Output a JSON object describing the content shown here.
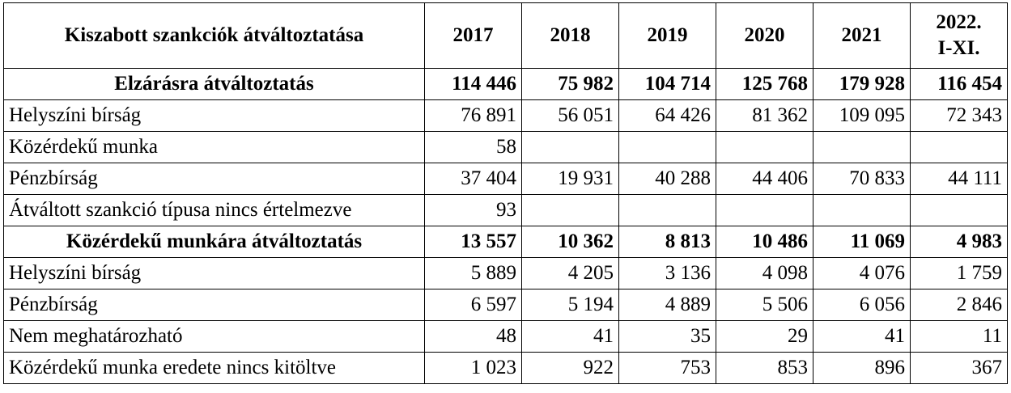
{
  "header": {
    "title": "Kiszabott szankciók átváltoztatása",
    "years": [
      "2017",
      "2018",
      "2019",
      "2020",
      "2021",
      "2022. I-XI."
    ]
  },
  "rows": [
    {
      "label": "Elzárásra átváltoztatás",
      "bold": true,
      "values": [
        "114 446",
        "75 982",
        "104 714",
        "125 768",
        "179 928",
        "116 454"
      ]
    },
    {
      "label": "Helyszíni bírság",
      "bold": false,
      "values": [
        "76 891",
        "56 051",
        "64 426",
        "81 362",
        "109 095",
        "72 343"
      ]
    },
    {
      "label": "Közérdekű munka",
      "bold": false,
      "values": [
        "58",
        "",
        "",
        "",
        "",
        ""
      ]
    },
    {
      "label": "Pénzbírság",
      "bold": false,
      "values": [
        "37 404",
        "19 931",
        "40 288",
        "44 406",
        "70 833",
        "44 111"
      ]
    },
    {
      "label": "Átváltott szankció típusa nincs értelmezve",
      "bold": false,
      "values": [
        "93",
        "",
        "",
        "",
        "",
        ""
      ]
    },
    {
      "label": "Közérdekű munkára átváltoztatás",
      "bold": true,
      "values": [
        "13 557",
        "10 362",
        "8 813",
        "10 486",
        "11 069",
        "4 983"
      ]
    },
    {
      "label": "Helyszíni bírság",
      "bold": false,
      "values": [
        "5 889",
        "4 205",
        "3 136",
        "4 098",
        "4 076",
        "1 759"
      ]
    },
    {
      "label": "Pénzbírság",
      "bold": false,
      "values": [
        "6 597",
        "5 194",
        "4 889",
        "5 506",
        "6 056",
        "2 846"
      ]
    },
    {
      "label": "Nem meghatározható",
      "bold": false,
      "values": [
        "48",
        "41",
        "35",
        "29",
        "41",
        "11"
      ]
    },
    {
      "label": "Közérdekű munka eredete nincs kitöltve",
      "bold": false,
      "values": [
        "1 023",
        "922",
        "753",
        "853",
        "896",
        "367"
      ]
    }
  ]
}
